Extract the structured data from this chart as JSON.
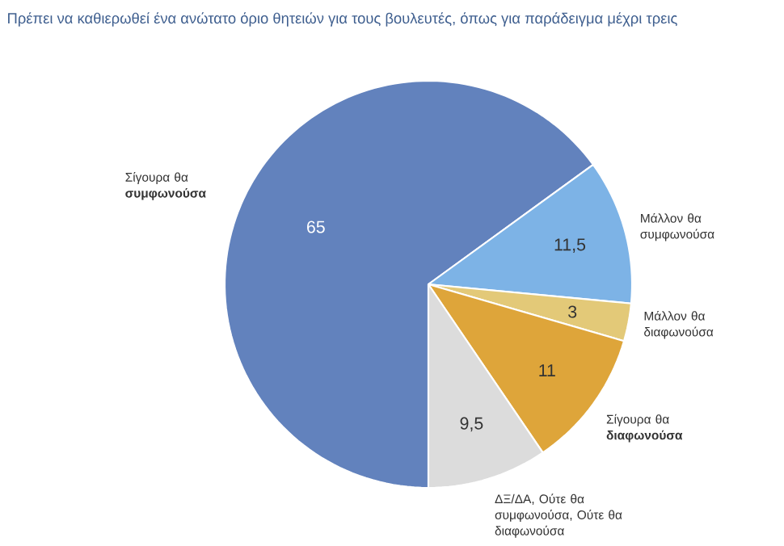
{
  "chart_data": {
    "type": "pie",
    "title": "Πρέπει να καθιερωθεί ένα ανώτατο όριο θητειών για τους βουλευτές, όπως για παράδειγμα μέχρι τρεις",
    "categories": [
      "Σίγουρα θα **συμφωνούσα**",
      "Μάλλον θα συμφωνούσα",
      "Μάλλον θα διαφωνούσα",
      "Σίγουρα θα **διαφωνούσα**",
      "ΔΞ/ΔΑ, Ούτε θα συμφωνούσα, Ούτε θα διαφωνούσα"
    ],
    "values": [
      65,
      11.5,
      3,
      11,
      9.5
    ],
    "colors": [
      "#6282bd",
      "#7db3e6",
      "#e3c978",
      "#dea53a",
      "#dcdcdc"
    ],
    "value_labels": [
      "65",
      "11,5",
      "3",
      "11",
      "9,5"
    ]
  }
}
